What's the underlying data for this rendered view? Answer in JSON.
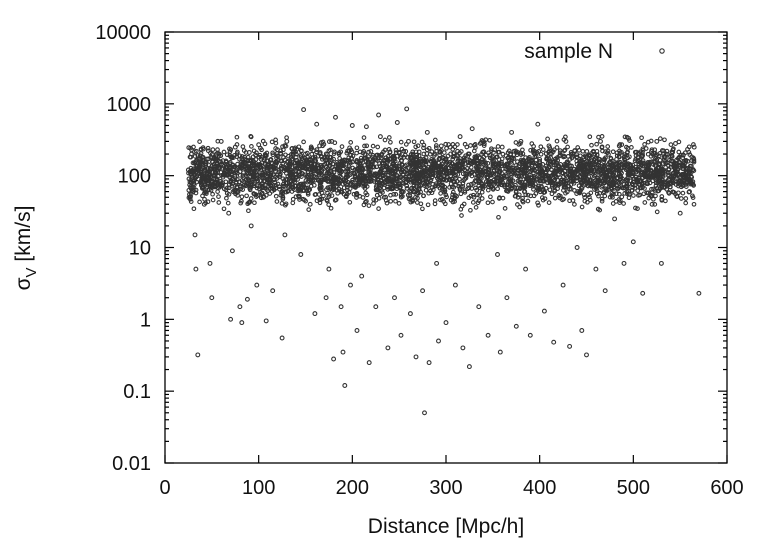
{
  "chart_data": {
    "type": "scatter",
    "xlabel": "Distance [Mpc/h]",
    "ylabel": {
      "symbol": "σ",
      "subscript": "V",
      "unit": " [km/s]"
    },
    "xlim": [
      0,
      600
    ],
    "ylim": [
      0.01,
      10000
    ],
    "y_scale": "log",
    "x_ticks": [
      {
        "value": 0,
        "label": "0"
      },
      {
        "value": 100,
        "label": "100"
      },
      {
        "value": 200,
        "label": "200"
      },
      {
        "value": 300,
        "label": "300"
      },
      {
        "value": 400,
        "label": "400"
      },
      {
        "value": 500,
        "label": "500"
      },
      {
        "value": 600,
        "label": "600"
      }
    ],
    "y_ticks": [
      {
        "value": 0.01,
        "label": "0.01"
      },
      {
        "value": 0.1,
        "label": "0.1"
      },
      {
        "value": 1,
        "label": "1"
      },
      {
        "value": 10,
        "label": "10"
      },
      {
        "value": 100,
        "label": "100"
      },
      {
        "value": 1000,
        "label": "1000"
      },
      {
        "value": 10000,
        "label": "10000"
      }
    ],
    "grid": false,
    "legend": {
      "position": "top-right"
    },
    "series": [
      {
        "name": "sample N",
        "marker": "open-circle",
        "color": "#333333",
        "points": [
          [
            25,
            120
          ],
          [
            28,
            80
          ],
          [
            30,
            60
          ],
          [
            32,
            15
          ],
          [
            33,
            5
          ],
          [
            35,
            0.32
          ],
          [
            38,
            150
          ],
          [
            40,
            90
          ],
          [
            42,
            40
          ],
          [
            45,
            170
          ],
          [
            48,
            6
          ],
          [
            50,
            2
          ],
          [
            55,
            200
          ],
          [
            60,
            300
          ],
          [
            65,
            130
          ],
          [
            68,
            30
          ],
          [
            70,
            1.0
          ],
          [
            72,
            9
          ],
          [
            75,
            250
          ],
          [
            78,
            60
          ],
          [
            80,
            1.5
          ],
          [
            82,
            0.9
          ],
          [
            85,
            180
          ],
          [
            88,
            1.9
          ],
          [
            90,
            210
          ],
          [
            92,
            20
          ],
          [
            95,
            140
          ],
          [
            98,
            3
          ],
          [
            100,
            270
          ],
          [
            105,
            50
          ],
          [
            108,
            0.95
          ],
          [
            110,
            160
          ],
          [
            115,
            2.5
          ],
          [
            120,
            230
          ],
          [
            125,
            0.55
          ],
          [
            128,
            15
          ],
          [
            130,
            300
          ],
          [
            135,
            70
          ],
          [
            140,
            180
          ],
          [
            145,
            8
          ],
          [
            148,
            830
          ],
          [
            150,
            200
          ],
          [
            155,
            40
          ],
          [
            160,
            1.2
          ],
          [
            162,
            520
          ],
          [
            165,
            260
          ],
          [
            170,
            90
          ],
          [
            172,
            2.0
          ],
          [
            175,
            5
          ],
          [
            178,
            300
          ],
          [
            180,
            0.28
          ],
          [
            182,
            650
          ],
          [
            185,
            120
          ],
          [
            188,
            1.5
          ],
          [
            190,
            0.35
          ],
          [
            192,
            0.12
          ],
          [
            195,
            220
          ],
          [
            198,
            3
          ],
          [
            200,
            500
          ],
          [
            205,
            0.7
          ],
          [
            208,
            150
          ],
          [
            210,
            4
          ],
          [
            215,
            480
          ],
          [
            218,
            0.25
          ],
          [
            220,
            140
          ],
          [
            225,
            1.5
          ],
          [
            228,
            700
          ],
          [
            230,
            350
          ],
          [
            235,
            80
          ],
          [
            238,
            0.4
          ],
          [
            240,
            210
          ],
          [
            245,
            2
          ],
          [
            248,
            550
          ],
          [
            252,
            0.6
          ],
          [
            255,
            180
          ],
          [
            258,
            850
          ],
          [
            260,
            300
          ],
          [
            262,
            1.2
          ],
          [
            265,
            60
          ],
          [
            268,
            0.3
          ],
          [
            270,
            150
          ],
          [
            275,
            2.5
          ],
          [
            277,
            0.05
          ],
          [
            280,
            400
          ],
          [
            282,
            0.25
          ],
          [
            285,
            120
          ],
          [
            290,
            6
          ],
          [
            292,
            0.5
          ],
          [
            295,
            260
          ],
          [
            300,
            0.9
          ],
          [
            305,
            200
          ],
          [
            310,
            3
          ],
          [
            315,
            350
          ],
          [
            318,
            0.4
          ],
          [
            320,
            90
          ],
          [
            325,
            0.22
          ],
          [
            328,
            450
          ],
          [
            330,
            160
          ],
          [
            335,
            1.5
          ],
          [
            340,
            300
          ],
          [
            345,
            0.6
          ],
          [
            350,
            130
          ],
          [
            355,
            8
          ],
          [
            358,
            0.35
          ],
          [
            360,
            250
          ],
          [
            365,
            2
          ],
          [
            370,
            400
          ],
          [
            375,
            0.8
          ],
          [
            378,
            100
          ],
          [
            380,
            300
          ],
          [
            385,
            5
          ],
          [
            390,
            0.6
          ],
          [
            395,
            200
          ],
          [
            398,
            520
          ],
          [
            400,
            150
          ],
          [
            405,
            1.3
          ],
          [
            410,
            260
          ],
          [
            415,
            0.48
          ],
          [
            420,
            120
          ],
          [
            425,
            3
          ],
          [
            428,
            300
          ],
          [
            432,
            0.42
          ],
          [
            435,
            200
          ],
          [
            440,
            10
          ],
          [
            445,
            0.7
          ],
          [
            450,
            0.32
          ],
          [
            455,
            180
          ],
          [
            460,
            5
          ],
          [
            465,
            300
          ],
          [
            470,
            2.5
          ],
          [
            475,
            150
          ],
          [
            480,
            25
          ],
          [
            485,
            260
          ],
          [
            490,
            6
          ],
          [
            495,
            330
          ],
          [
            500,
            12
          ],
          [
            505,
            200
          ],
          [
            510,
            2.3
          ],
          [
            515,
            150
          ],
          [
            520,
            40
          ],
          [
            525,
            300
          ],
          [
            530,
            6
          ],
          [
            535,
            200
          ],
          [
            540,
            80
          ],
          [
            545,
            280
          ],
          [
            550,
            30
          ],
          [
            555,
            150
          ],
          [
            560,
            60
          ],
          [
            565,
            250
          ],
          [
            570,
            2.3
          ]
        ]
      }
    ],
    "density_cloud": {
      "count": 3600,
      "x_range": [
        25,
        565
      ],
      "y_center": 110,
      "log_spread": 0.5
    }
  }
}
